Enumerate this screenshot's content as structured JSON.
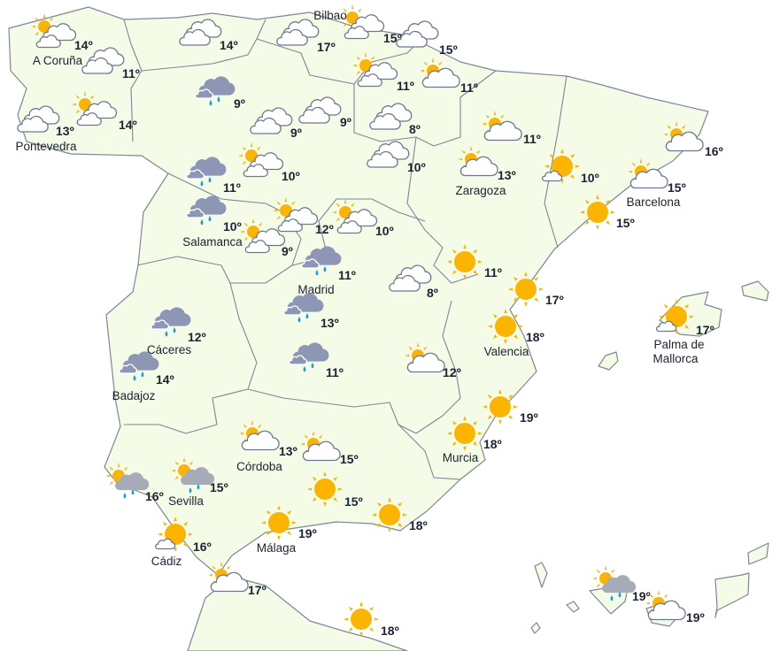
{
  "colors": {
    "land": "#f4fbe6",
    "border": "#7d8797",
    "sun": "#fbb400",
    "rain_cloud": "#8d97b5",
    "drops": "#1a9ee0",
    "text": "#1b2233"
  },
  "stations": [
    {
      "city": "A Coruña",
      "icon": "sun-cloud",
      "temp": "14º"
    },
    {
      "city": "",
      "icon": "clouds",
      "temp": "11º"
    },
    {
      "city": "",
      "icon": "clouds",
      "temp": "14º"
    },
    {
      "city": "",
      "icon": "clouds",
      "temp": "17º"
    },
    {
      "city": "Bilbao",
      "icon": "sun-cloud",
      "temp": "15º"
    },
    {
      "city": "",
      "icon": "clouds",
      "temp": "15º"
    },
    {
      "city": "",
      "icon": "sun-cloud",
      "temp": "11º"
    },
    {
      "city": "",
      "icon": "sun-cloud-single",
      "temp": "11º"
    },
    {
      "city": "",
      "icon": "rain",
      "temp": "9º"
    },
    {
      "city": "",
      "icon": "sun-cloud",
      "temp": "14º"
    },
    {
      "city": "Pontevedra",
      "icon": "clouds",
      "temp": "13º"
    },
    {
      "city": "",
      "icon": "clouds",
      "temp": "9º"
    },
    {
      "city": "",
      "icon": "clouds",
      "temp": "9º"
    },
    {
      "city": "",
      "icon": "clouds",
      "temp": "8º"
    },
    {
      "city": "",
      "icon": "clouds",
      "temp": "10º"
    },
    {
      "city": "",
      "icon": "sun-cloud-single",
      "temp": "11º"
    },
    {
      "city": "Zaragoza",
      "icon": "sun-cloud-single",
      "temp": "13º"
    },
    {
      "city": "",
      "icon": "sun-small-cloud",
      "temp": "10º"
    },
    {
      "city": "",
      "icon": "sun-cloud-single",
      "temp": "16º"
    },
    {
      "city": "Barcelona",
      "icon": "sun-cloud-single",
      "temp": "15º"
    },
    {
      "city": "",
      "icon": "rain",
      "temp": "11º"
    },
    {
      "city": "",
      "icon": "sun-cloud",
      "temp": "10º"
    },
    {
      "city": "Salamanca",
      "icon": "rain",
      "temp": "10º"
    },
    {
      "city": "",
      "icon": "sun-cloud",
      "temp": "9º"
    },
    {
      "city": "",
      "icon": "sun-cloud",
      "temp": "12º"
    },
    {
      "city": "",
      "icon": "sun-cloud",
      "temp": "10º"
    },
    {
      "city": "",
      "icon": "sun",
      "temp": "15º"
    },
    {
      "city": "",
      "icon": "sun",
      "temp": "11º"
    },
    {
      "city": "Madrid",
      "icon": "rain",
      "temp": "11º"
    },
    {
      "city": "",
      "icon": "clouds",
      "temp": "8º"
    },
    {
      "city": "",
      "icon": "sun",
      "temp": "17º"
    },
    {
      "city": "Palma de Mallorca",
      "icon": "sun-small-cloud",
      "temp": "17º"
    },
    {
      "city": "Cáceres",
      "icon": "rain",
      "temp": "12º"
    },
    {
      "city": "",
      "icon": "rain",
      "temp": "13º"
    },
    {
      "city": "Valencia",
      "icon": "sun",
      "temp": "18º"
    },
    {
      "city": "",
      "icon": "sun-cloud-single",
      "temp": "12º"
    },
    {
      "city": "Badajoz",
      "icon": "rain",
      "temp": "14º"
    },
    {
      "city": "",
      "icon": "rain",
      "temp": "11º"
    },
    {
      "city": "",
      "icon": "sun",
      "temp": "19º"
    },
    {
      "city": "Murcia",
      "icon": "sun",
      "temp": "18º"
    },
    {
      "city": "Córdoba",
      "icon": "sun-cloud-single",
      "temp": "13º"
    },
    {
      "city": "",
      "icon": "sun-cloud-single",
      "temp": "15º"
    },
    {
      "city": "",
      "icon": "sun-rain",
      "temp": "16º"
    },
    {
      "city": "Sevilla",
      "icon": "sun-rain",
      "temp": "15º"
    },
    {
      "city": "",
      "icon": "sun",
      "temp": "15º"
    },
    {
      "city": "",
      "icon": "sun",
      "temp": "18º"
    },
    {
      "city": "Málaga",
      "icon": "sun",
      "temp": "19º"
    },
    {
      "city": "Cádiz",
      "icon": "sun-small-cloud",
      "temp": "16º"
    },
    {
      "city": "",
      "icon": "sun-cloud-single",
      "temp": "17º"
    },
    {
      "city": "",
      "icon": "sun",
      "temp": "18º"
    },
    {
      "city": "",
      "icon": "sun-rain",
      "temp": "19º"
    },
    {
      "city": "",
      "icon": "sun-cloud-single",
      "temp": "19º"
    }
  ]
}
